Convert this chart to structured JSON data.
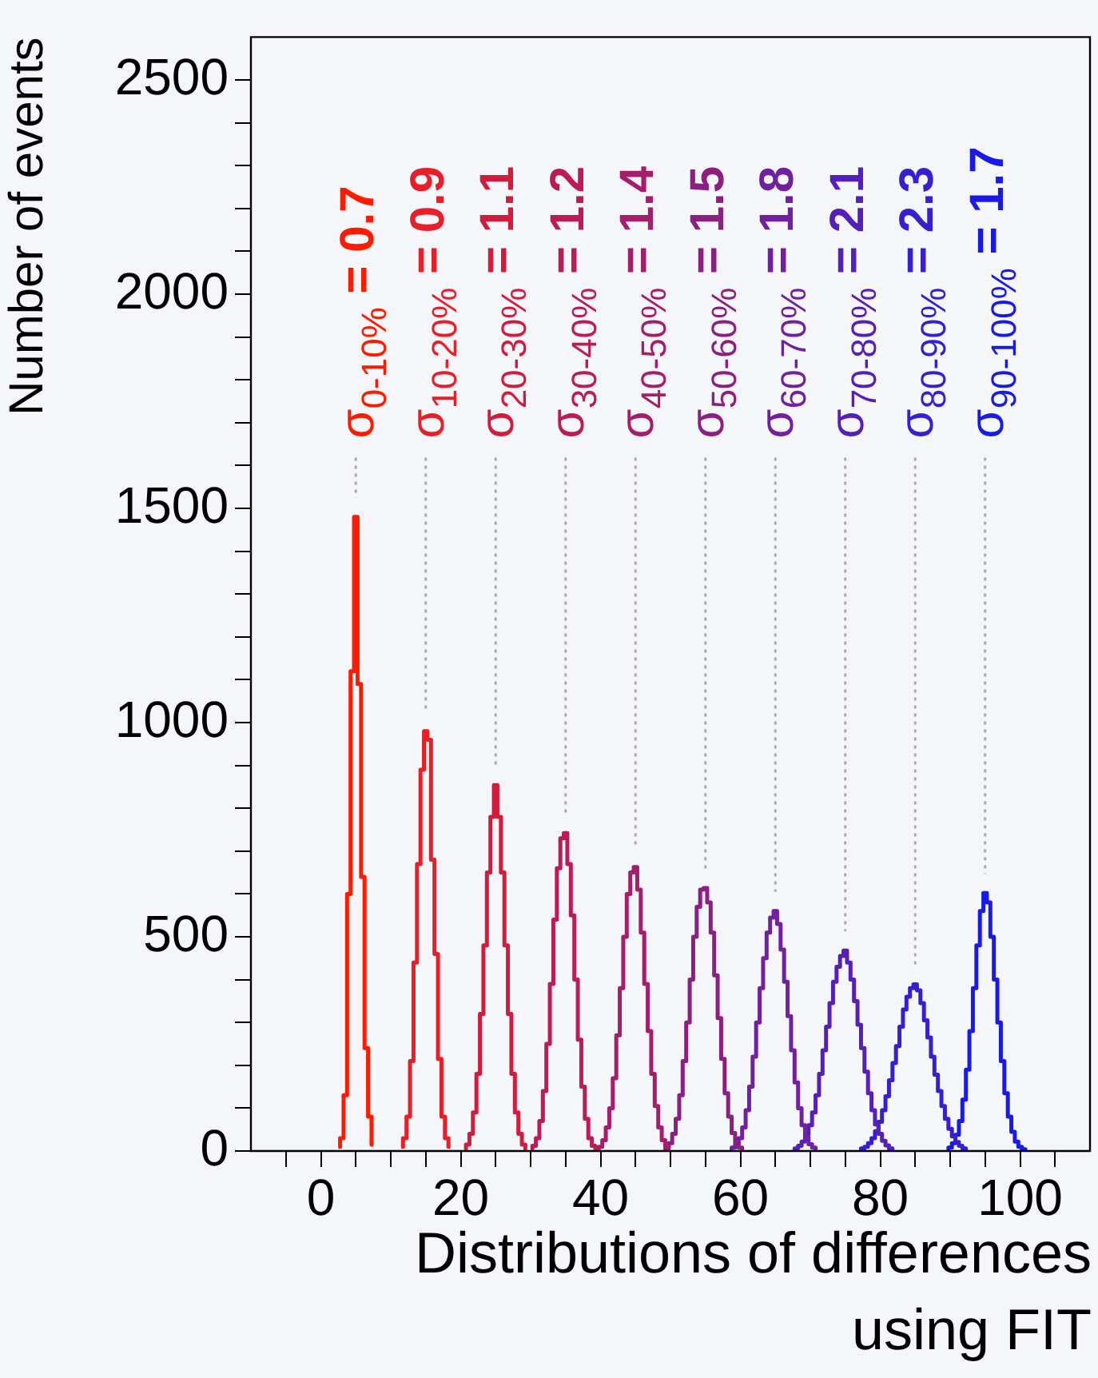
{
  "chart_data": {
    "type": "step",
    "ylabel": "Number of events",
    "xlabel": "Distributions of differences using FIT",
    "xlim": [
      -10,
      110
    ],
    "ylim": [
      0,
      2600
    ],
    "xticks": [
      {
        "value": -5,
        "label": null
      },
      0,
      {
        "value": 5,
        "label": null
      },
      {
        "value": 10,
        "label": null
      },
      {
        "value": 15,
        "label": null
      },
      20,
      {
        "value": 25,
        "label": null
      },
      {
        "value": 30,
        "label": null
      },
      {
        "value": 35,
        "label": null
      },
      40,
      {
        "value": 45,
        "label": null
      },
      {
        "value": 50,
        "label": null
      },
      {
        "value": 55,
        "label": null
      },
      60,
      {
        "value": 65,
        "label": null
      },
      {
        "value": 70,
        "label": null
      },
      {
        "value": 75,
        "label": null
      },
      80,
      {
        "value": 85,
        "label": null
      },
      {
        "value": 90,
        "label": null
      },
      {
        "value": 95,
        "label": null
      },
      100,
      {
        "value": 105,
        "label": null
      }
    ],
    "yticks": [
      0,
      {
        "value": 100,
        "label": null
      },
      {
        "value": 200,
        "label": null
      },
      {
        "value": 300,
        "label": null
      },
      {
        "value": 400,
        "label": null
      },
      500,
      {
        "value": 600,
        "label": null
      },
      {
        "value": 700,
        "label": null
      },
      {
        "value": 800,
        "label": null
      },
      {
        "value": 900,
        "label": null
      },
      1000,
      {
        "value": 1100,
        "label": null
      },
      {
        "value": 1200,
        "label": null
      },
      {
        "value": 1300,
        "label": null
      },
      {
        "value": 1400,
        "label": null
      },
      1500,
      {
        "value": 1600,
        "label": null
      },
      {
        "value": 1700,
        "label": null
      },
      {
        "value": 1800,
        "label": null
      },
      {
        "value": 1900,
        "label": null
      },
      2000,
      {
        "value": 2100,
        "label": null
      },
      {
        "value": 2200,
        "label": null
      },
      {
        "value": 2300,
        "label": null
      },
      {
        "value": 2400,
        "label": null
      },
      2500
    ],
    "grid": false,
    "legend": false,
    "series": [
      {
        "color": "#ff1a00",
        "x": [
          2.5,
          3,
          3.5,
          4,
          4.5,
          5,
          5.5,
          6,
          6.5,
          7,
          7.5
        ],
        "values": [
          10,
          30,
          130,
          600,
          1120,
          1480,
          1090,
          640,
          240,
          80,
          15
        ]
      },
      {
        "color": "#e81e28",
        "x": [
          11.5,
          12,
          12.5,
          13,
          13.5,
          14,
          14.5,
          15,
          15.5,
          16,
          16.5,
          17,
          17.5,
          18,
          18.5
        ],
        "values": [
          10,
          30,
          80,
          210,
          440,
          670,
          890,
          980,
          960,
          680,
          460,
          215,
          80,
          30,
          10
        ]
      },
      {
        "color": "#d21c3c",
        "x": [
          20.5,
          21,
          21.5,
          22,
          22.5,
          23,
          23.5,
          24,
          24.5,
          25,
          25.5,
          26,
          26.5,
          27,
          27.5,
          28,
          28.5,
          29,
          29.5
        ],
        "values": [
          5,
          15,
          40,
          90,
          180,
          320,
          480,
          650,
          780,
          854,
          780,
          650,
          480,
          320,
          180,
          90,
          40,
          15,
          5
        ]
      },
      {
        "color": "#bc1c54",
        "x": [
          30,
          30.5,
          31,
          31.5,
          32,
          32.5,
          33,
          33.5,
          34,
          34.5,
          35,
          35.5,
          36,
          36.5,
          37,
          37.5,
          38,
          38.5,
          39,
          39.5
        ],
        "values": [
          5,
          12,
          30,
          70,
          140,
          250,
          390,
          540,
          660,
          730,
          742,
          670,
          550,
          400,
          260,
          150,
          75,
          30,
          12,
          5
        ]
      },
      {
        "color": "#a41e6c",
        "x": [
          39.5,
          40,
          40.5,
          41,
          41.5,
          42,
          42.5,
          43,
          43.5,
          44,
          44.5,
          45,
          45.5,
          46,
          46.5,
          47,
          47.5,
          48,
          48.5,
          49,
          49.5,
          50
        ],
        "values": [
          5,
          10,
          25,
          55,
          100,
          170,
          270,
          380,
          500,
          600,
          650,
          663,
          610,
          510,
          390,
          280,
          180,
          105,
          55,
          25,
          10,
          5
        ]
      },
      {
        "color": "#8c2082",
        "x": [
          49,
          49.5,
          50,
          50.5,
          51,
          51.5,
          52,
          52.5,
          53,
          53.5,
          54,
          54.5,
          55,
          55.5,
          56,
          56.5,
          57,
          57.5,
          58,
          58.5,
          59,
          59.5,
          60,
          60.5
        ],
        "values": [
          3,
          8,
          18,
          40,
          75,
          130,
          210,
          300,
          400,
          500,
          570,
          610,
          614,
          580,
          510,
          410,
          310,
          215,
          135,
          80,
          42,
          20,
          8,
          3
        ]
      },
      {
        "color": "#7020a0",
        "x": [
          58.5,
          59,
          59.5,
          60,
          60.5,
          61,
          61.5,
          62,
          62.5,
          63,
          63.5,
          64,
          64.5,
          65,
          65.5,
          66,
          66.5,
          67,
          67.5,
          68,
          68.5,
          69,
          69.5,
          70,
          70.5,
          71
        ],
        "values": [
          3,
          8,
          16,
          30,
          55,
          95,
          150,
          220,
          300,
          380,
          450,
          510,
          545,
          560,
          530,
          470,
          395,
          315,
          235,
          160,
          100,
          60,
          32,
          16,
          8,
          3
        ]
      },
      {
        "color": "#5420b8",
        "x": [
          67.5,
          68,
          68.5,
          69,
          69.5,
          70,
          70.5,
          71,
          71.5,
          72,
          72.5,
          73,
          73.5,
          74,
          74.5,
          75,
          75.5,
          76,
          76.5,
          77,
          77.5,
          78,
          78.5,
          79,
          79.5,
          80,
          80.5,
          81,
          81.5,
          82
        ],
        "values": [
          3,
          6,
          12,
          22,
          38,
          60,
          90,
          130,
          180,
          235,
          290,
          345,
          395,
          430,
          455,
          468,
          440,
          400,
          350,
          295,
          240,
          185,
          135,
          95,
          62,
          40,
          24,
          13,
          6,
          3
        ]
      },
      {
        "color": "#381ed0",
        "x": [
          77,
          77.5,
          78,
          78.5,
          79,
          79.5,
          80,
          80.5,
          81,
          81.5,
          82,
          82.5,
          83,
          83.5,
          84,
          84.5,
          85,
          85.5,
          86,
          86.5,
          87,
          87.5,
          88,
          88.5,
          89,
          89.5,
          90,
          90.5,
          91,
          91.5,
          92,
          92.5
        ],
        "values": [
          3,
          6,
          10,
          18,
          30,
          46,
          68,
          95,
          128,
          165,
          205,
          245,
          290,
          330,
          360,
          380,
          389,
          375,
          345,
          305,
          265,
          220,
          178,
          140,
          105,
          75,
          52,
          34,
          21,
          12,
          6,
          3
        ]
      },
      {
        "color": "#1a1ae8",
        "x": [
          89.5,
          90,
          90.5,
          91,
          91.5,
          92,
          92.5,
          93,
          93.5,
          94,
          94.5,
          95,
          95.5,
          96,
          96.5,
          97,
          97.5,
          98,
          98.5,
          99,
          99.5,
          100,
          100.5,
          101
        ],
        "values": [
          3,
          8,
          18,
          38,
          70,
          120,
          190,
          280,
          380,
          480,
          560,
          602,
          580,
          500,
          400,
          300,
          210,
          135,
          80,
          45,
          22,
          10,
          4,
          2
        ]
      }
    ],
    "annotations": [
      "σ$_{0-10%}$ = 0.7",
      "σ$_{10-20%}$ = 0.9",
      "σ$_{20-30%}$ = 1.1",
      "σ$_{30-40%}$ = 1.2",
      "σ$_{40-50%}$ = 1.4",
      "σ$_{50-60%}$ = 1.5",
      "σ$_{60-70%}$ = 1.8",
      "σ$_{70-80%}$ = 2.1",
      "σ$_{80-90%}$ = 2.3",
      "σ$_{90-100%}$ = 1.7"
    ]
  }
}
